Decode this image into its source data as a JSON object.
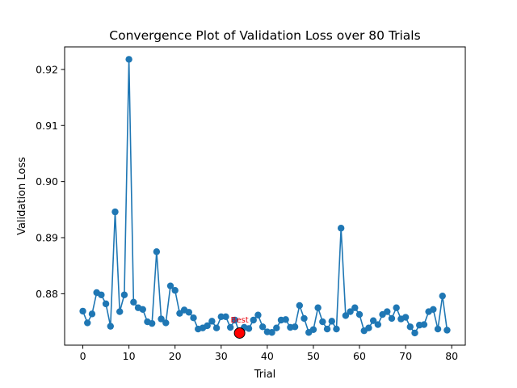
{
  "chart_data": {
    "type": "line",
    "title": "Convergence Plot of Validation Loss over 80 Trials",
    "xlabel": "Trial",
    "ylabel": "Validation Loss",
    "xlim": [
      -3.95,
      82.95
    ],
    "ylim": [
      0.87083,
      0.92402
    ],
    "xticks": [
      0,
      10,
      20,
      30,
      40,
      50,
      60,
      70,
      80
    ],
    "yticks": [
      0.88,
      0.89,
      0.9,
      0.91,
      0.92
    ],
    "ytick_labels": [
      "0.88",
      "0.89",
      "0.90",
      "0.91",
      "0.92"
    ],
    "series_color": "#1f77b4",
    "best_color": "#ff0000",
    "annotation_color": "#e8000b",
    "series": [
      {
        "x": [
          0,
          1,
          2,
          3,
          4,
          5,
          6,
          7,
          8,
          9,
          10,
          11,
          12,
          13,
          14,
          15,
          16,
          17,
          18,
          19,
          20,
          21,
          22,
          23,
          24,
          25,
          26,
          27,
          28,
          29,
          30,
          31,
          32,
          33,
          34,
          35,
          36,
          37,
          38,
          39,
          40,
          41,
          42,
          43,
          44,
          45,
          46,
          47,
          48,
          49,
          50,
          51,
          52,
          53,
          54,
          55,
          56,
          57,
          58,
          59,
          60,
          61,
          62,
          63,
          64,
          65,
          66,
          67,
          68,
          69,
          70,
          71,
          72,
          73,
          74,
          75,
          76,
          77,
          78,
          79
        ],
        "values": [
          0.8769,
          0.8748,
          0.8764,
          0.8802,
          0.8798,
          0.8782,
          0.8742,
          0.8946,
          0.8768,
          0.8798,
          0.9218,
          0.8785,
          0.8775,
          0.8772,
          0.875,
          0.8747,
          0.8875,
          0.8755,
          0.8748,
          0.8814,
          0.8806,
          0.8765,
          0.8771,
          0.8767,
          0.8757,
          0.8737,
          0.8739,
          0.8743,
          0.8751,
          0.8739,
          0.8759,
          0.8759,
          0.874,
          0.8753,
          0.873,
          0.874,
          0.8738,
          0.8753,
          0.8762,
          0.8741,
          0.8732,
          0.8731,
          0.8739,
          0.8753,
          0.8754,
          0.874,
          0.8741,
          0.8779,
          0.8756,
          0.8731,
          0.8736,
          0.8775,
          0.875,
          0.8737,
          0.8751,
          0.8737,
          0.8917,
          0.8761,
          0.8768,
          0.8775,
          0.8763,
          0.8734,
          0.8739,
          0.8752,
          0.8745,
          0.8763,
          0.8768,
          0.8756,
          0.8775,
          0.8755,
          0.8758,
          0.8741,
          0.873,
          0.8744,
          0.8745,
          0.8768,
          0.8772,
          0.8737,
          0.8796,
          0.8735
        ]
      }
    ],
    "best": {
      "x": 34,
      "y": 0.873,
      "label": "Best"
    },
    "grid": false,
    "legend": "none"
  }
}
